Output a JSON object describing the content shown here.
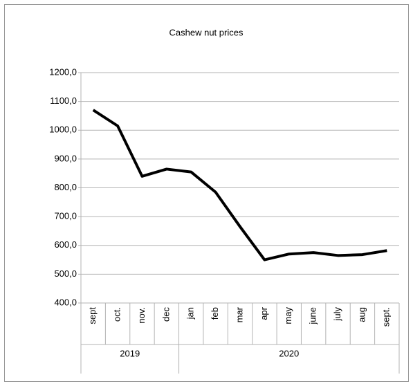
{
  "chart_data": {
    "type": "line",
    "title": "Cashew  nut prices",
    "categories": [
      "sept",
      "oct.",
      "nov.",
      "dec",
      "jan",
      "feb",
      "mar",
      "apr",
      "may",
      "june",
      "july",
      "aug",
      "sept."
    ],
    "groups": [
      {
        "label": "2019",
        "span": 4
      },
      {
        "label": "2020",
        "span": 9
      }
    ],
    "values": [
      1070,
      1015,
      840,
      865,
      855,
      785,
      665,
      550,
      570,
      575,
      565,
      568,
      582
    ],
    "color": "#000000",
    "ylim": [
      400,
      1200
    ],
    "yticks": [
      {
        "value": 400,
        "label": "400,0"
      },
      {
        "value": 500,
        "label": "500,0"
      },
      {
        "value": 600,
        "label": "600,0"
      },
      {
        "value": 700,
        "label": "700,0"
      },
      {
        "value": 800,
        "label": "800,0"
      },
      {
        "value": 900,
        "label": "900,0"
      },
      {
        "value": 1000,
        "label": "1000,0"
      },
      {
        "value": 1100,
        "label": "1100,0"
      },
      {
        "value": 1200,
        "label": "1200,0"
      }
    ],
    "grid": true
  }
}
